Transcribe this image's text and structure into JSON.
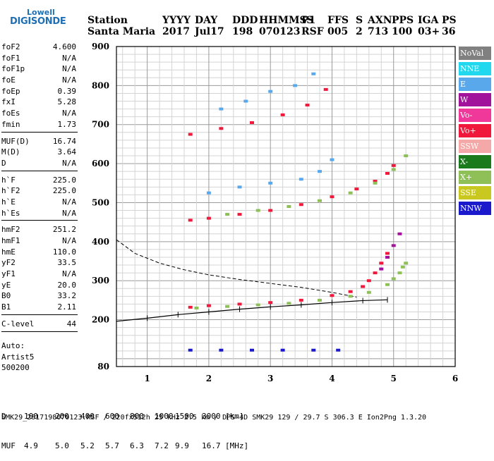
{
  "logo": {
    "top": "Lowell",
    "bottom": "DIGISONDE"
  },
  "header": {
    "row1": [
      "Station",
      "YYYY",
      "DAY",
      "DDD",
      "HHMMSS",
      "P1",
      "FFS",
      "S",
      "AXN",
      "PPS",
      "IGA",
      "PS"
    ],
    "row2": [
      "Santa Maria",
      "2017",
      "Jul17",
      "198",
      "070123",
      "RSF",
      "005",
      "2",
      "713",
      "100",
      "03+",
      "36"
    ]
  },
  "params": [
    {
      "name": "foF2",
      "value": "4.600"
    },
    {
      "name": "foF1",
      "value": "N/A"
    },
    {
      "name": "foF1p",
      "value": "N/A"
    },
    {
      "name": "foE",
      "value": "N/A"
    },
    {
      "name": "foEp",
      "value": "0.39"
    },
    {
      "name": "fxI",
      "value": "5.28"
    },
    {
      "name": "foEs",
      "value": "N/A"
    },
    {
      "name": "fmin",
      "value": "1.73"
    },
    {
      "sep": true
    },
    {
      "name": "MUF(D)",
      "value": "16.74"
    },
    {
      "name": "M(D)",
      "value": "3.64"
    },
    {
      "name": "D",
      "value": "N/A"
    },
    {
      "sep": true
    },
    {
      "name": "h`F",
      "value": "225.0"
    },
    {
      "name": "h`F2",
      "value": "225.0"
    },
    {
      "name": "h`E",
      "value": "N/A"
    },
    {
      "name": "h`Es",
      "value": "N/A"
    },
    {
      "sep": true
    },
    {
      "name": "hmF2",
      "value": "251.2"
    },
    {
      "name": "hmF1",
      "value": "N/A"
    },
    {
      "name": "hmE",
      "value": "110.0"
    },
    {
      "name": "yF2",
      "value": "33.5"
    },
    {
      "name": "yF1",
      "value": "N/A"
    },
    {
      "name": "yE",
      "value": "20.0"
    },
    {
      "name": "B0",
      "value": "33.2"
    },
    {
      "name": "B1",
      "value": "2.11"
    },
    {
      "sep": true
    },
    {
      "name": "C-level",
      "value": "44"
    },
    {
      "sep": true
    }
  ],
  "auto": {
    "line1": "Auto:",
    "line2": "Artist5",
    "line3": "500200"
  },
  "legend": [
    {
      "label": "NoVal",
      "color": "#808080"
    },
    {
      "label": "NNE",
      "color": "#22d8ee"
    },
    {
      "label": "E",
      "color": "#5aa8ec"
    },
    {
      "label": "W",
      "color": "#a0139a"
    },
    {
      "label": "Vo-",
      "color": "#f0389a"
    },
    {
      "label": "Vo+",
      "color": "#f0193c"
    },
    {
      "label": "SSW",
      "color": "#f4a8a8"
    },
    {
      "label": "X-",
      "color": "#1b7a1b"
    },
    {
      "label": "X+",
      "color": "#8fc058"
    },
    {
      "label": "SSE",
      "color": "#c8c820"
    },
    {
      "label": "NNW",
      "color": "#1a1acc"
    }
  ],
  "muf_table": {
    "d_label": "D",
    "d_values": [
      "100",
      "200",
      "400",
      "600",
      "800",
      "1000",
      "1500",
      "3000",
      "[km]"
    ],
    "muf_label": "MUF",
    "muf_values": [
      "4.9",
      "5.0",
      "5.2",
      "5.7",
      "6.3",
      "7.2",
      "9.9",
      "16.7",
      "[MHz]"
    ]
  },
  "footer": "SMK29_2017198070123.RSF / 220fx512h 25 kHz 2.5 km / DPS-4D SMK29 129 / 29.7 S 306.3 E Ion2Png 1.3.20",
  "chart_data": {
    "type": "scatter",
    "xlabel": "",
    "ylabel": "",
    "xlim": [
      0.5,
      6
    ],
    "ylim": [
      80,
      900
    ],
    "xticks": [
      1,
      2,
      3,
      4,
      5,
      6
    ],
    "yticks": [
      80,
      200,
      300,
      400,
      500,
      600,
      700,
      800,
      900
    ],
    "grid": true,
    "legend": "right",
    "series": [
      {
        "name": "Vo+",
        "color": "#f0193c",
        "x": [
          1.7,
          2.0,
          2.5,
          3.0,
          3.5,
          4.0,
          4.3,
          4.5,
          4.6,
          4.7,
          4.8,
          4.9
        ],
        "y": [
          232,
          236,
          240,
          244,
          250,
          262,
          272,
          285,
          300,
          320,
          345,
          370
        ]
      },
      {
        "name": "X+",
        "color": "#8fc058",
        "x": [
          1.8,
          2.3,
          2.8,
          3.3,
          3.8,
          4.3,
          4.6,
          4.9,
          5.0,
          5.1,
          5.15,
          5.2
        ],
        "y": [
          230,
          234,
          238,
          242,
          250,
          260,
          270,
          290,
          305,
          320,
          335,
          345
        ]
      },
      {
        "name": "Vo+",
        "color": "#f0193c",
        "x": [
          1.7,
          2.0,
          2.5,
          3.0,
          3.5,
          4.0,
          4.4,
          4.7,
          4.9,
          5.0
        ],
        "y": [
          455,
          460,
          470,
          480,
          495,
          515,
          535,
          555,
          575,
          595
        ]
      },
      {
        "name": "X+",
        "color": "#8fc058",
        "x": [
          2.3,
          2.8,
          3.3,
          3.8,
          4.3,
          4.7,
          5.0,
          5.2
        ],
        "y": [
          470,
          480,
          490,
          505,
          525,
          550,
          585,
          620
        ]
      },
      {
        "name": "Vo+",
        "color": "#f0193c",
        "x": [
          1.7,
          2.2,
          2.7,
          3.2,
          3.6,
          3.9
        ],
        "y": [
          675,
          690,
          705,
          725,
          750,
          790
        ]
      },
      {
        "name": "E",
        "color": "#5aa8ec",
        "x": [
          2.0,
          2.5,
          3.0,
          3.5,
          3.8,
          4.0
        ],
        "y": [
          525,
          540,
          550,
          560,
          580,
          610
        ]
      },
      {
        "name": "E",
        "color": "#5aa8ec",
        "x": [
          2.2,
          2.6,
          3.0,
          3.4,
          3.7
        ],
        "y": [
          740,
          760,
          785,
          800,
          830
        ]
      },
      {
        "name": "NNW",
        "color": "#1a1acc",
        "x": [
          1.7,
          2.2,
          2.7,
          3.2,
          3.7,
          4.1
        ],
        "y": [
          122,
          122,
          122,
          122,
          122,
          122
        ]
      },
      {
        "name": "W",
        "color": "#a0139a",
        "x": [
          4.8,
          4.9,
          5.0,
          5.1
        ],
        "y": [
          330,
          360,
          390,
          420
        ]
      }
    ],
    "profile_curve": {
      "x": [
        0.5,
        1.0,
        1.5,
        2.0,
        2.5,
        3.0,
        3.5,
        4.0,
        4.5,
        4.9
      ],
      "y": [
        196,
        204,
        213,
        220,
        227,
        233,
        238,
        244,
        249,
        251
      ]
    },
    "dashed_curve": {
      "x": [
        0.5,
        0.8,
        1.2,
        1.6,
        2.0,
        2.5,
        3.0,
        3.5,
        4.0,
        4.4
      ],
      "y": [
        405,
        370,
        345,
        328,
        315,
        303,
        293,
        283,
        270,
        258
      ]
    }
  }
}
